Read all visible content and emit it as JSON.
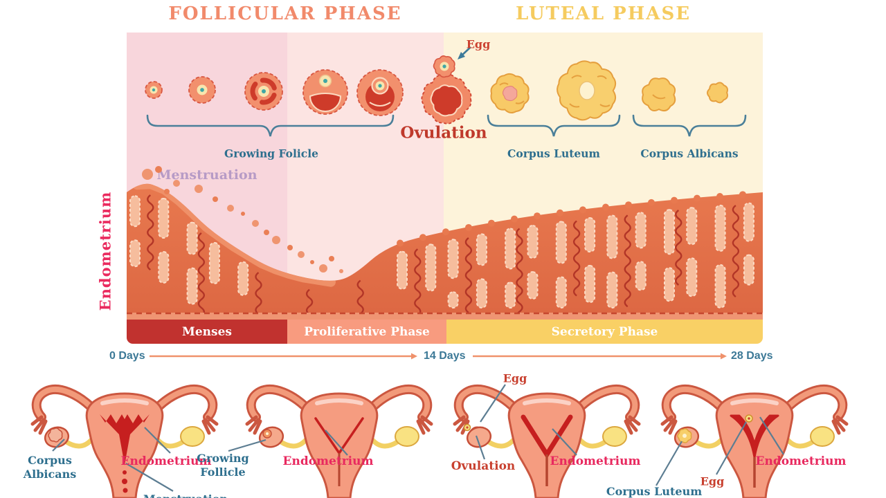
{
  "header": {
    "follicular_title": "FOLLICULAR PHASE",
    "luteal_title": "LUTEAL PHASE"
  },
  "cycle_row": {
    "egg_label": "Egg",
    "growing_follicle_label": "Growing Folicle",
    "ovulation_label": "Ovulation",
    "corpus_luteum_label": "Corpus Luteum",
    "corpus_albicans_label": "Corpus Albicans"
  },
  "endometrium_chart": {
    "menstruation_label": "Menstruation",
    "y_axis_label": "Endometrium",
    "phases": [
      {
        "label": "Menses",
        "color": "#c1322f"
      },
      {
        "label": "Proliferative Phase",
        "color": "#f89b7f"
      },
      {
        "label": "Secretory Phase",
        "color": "#f9d065"
      }
    ],
    "timeline": [
      {
        "label": "0 Days"
      },
      {
        "label": "14 Days"
      },
      {
        "label": "28 Days"
      }
    ]
  },
  "uterus_diagrams": [
    {
      "stage": "menses",
      "labels": [
        {
          "text": "Corpus Albicans"
        },
        {
          "text": "Endometrium"
        },
        {
          "text": "Menstruation"
        }
      ]
    },
    {
      "stage": "proliferative",
      "labels": [
        {
          "text": "Growing Follicle"
        },
        {
          "text": "Endometrium"
        }
      ]
    },
    {
      "stage": "ovulation",
      "labels": [
        {
          "text": "Egg"
        },
        {
          "text": "Ovulation"
        },
        {
          "text": "Endometrium"
        }
      ]
    },
    {
      "stage": "secretory",
      "labels": [
        {
          "text": "Corpus Luteum"
        },
        {
          "text": "Egg"
        },
        {
          "text": "Endometrium"
        }
      ]
    }
  ],
  "colors": {
    "title_salmon": "#f18a6b",
    "title_gold": "#f5cb5f",
    "bg_menses": "#f8d6dc",
    "bg_proliferative": "#fce4e2",
    "bg_luteal": "#fdf3da",
    "tissue": "#e1704a",
    "tissue_gland": "#f6bd9d",
    "vessel_red": "#b23527",
    "accent_teal": "#2e6f8e",
    "label_pink": "#e8295f",
    "label_red": "#c8402f",
    "lavender": "#b79bc6",
    "arrow_orange": "#ef916b"
  }
}
